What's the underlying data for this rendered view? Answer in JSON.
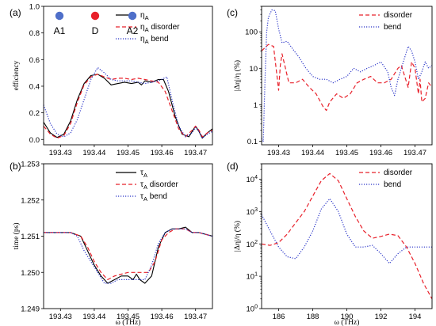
{
  "chart_data": [
    {
      "panel_label": "(a)",
      "type": "line",
      "xlabel": "",
      "ylabel": "efficiency",
      "xlim": [
        193.425,
        193.475
      ],
      "ylim": [
        -0.04,
        1.0
      ],
      "x_ticks": [
        193.43,
        193.44,
        193.45,
        193.46,
        193.47
      ],
      "x_tick_labels": [
        "193.43",
        "193.44",
        "193.45",
        "193.46",
        "193.47"
      ],
      "y_ticks": [
        0.0,
        0.2,
        0.4,
        0.6,
        0.8,
        1.0
      ],
      "y_tick_labels": [
        "0.0",
        "0.2",
        "0.4",
        "0.6",
        "0.8",
        "1.0"
      ],
      "legend_position": "top-right",
      "markers": [
        {
          "label": "A1",
          "color": "#4f6fc9"
        },
        {
          "label": "D",
          "color": "#e8202a"
        },
        {
          "label": "A2",
          "color": "#4f6fc9"
        }
      ],
      "series": [
        {
          "name": "η",
          "sub": "A",
          "name_suffix": "",
          "color": "#000000",
          "style": "solid",
          "x": [
            193.425,
            193.427,
            193.429,
            193.431,
            193.433,
            193.435,
            193.437,
            193.439,
            193.441,
            193.443,
            193.445,
            193.447,
            193.449,
            193.451,
            193.453,
            193.454,
            193.455,
            193.457,
            193.459,
            193.4605,
            193.462,
            193.464,
            193.466,
            193.468,
            193.469,
            193.47,
            193.471,
            193.472,
            193.4735,
            193.475
          ],
          "y": [
            0.13,
            0.05,
            0.015,
            0.04,
            0.14,
            0.3,
            0.42,
            0.48,
            0.49,
            0.46,
            0.41,
            0.42,
            0.43,
            0.42,
            0.43,
            0.41,
            0.44,
            0.43,
            0.45,
            0.45,
            0.36,
            0.17,
            0.04,
            0.02,
            0.06,
            0.1,
            0.06,
            0.01,
            0.05,
            0.08
          ]
        },
        {
          "name": "η",
          "sub": "A",
          "name_suffix": " disorder",
          "color": "#e8202a",
          "style": "dashed",
          "x": [
            193.425,
            193.427,
            193.429,
            193.431,
            193.433,
            193.435,
            193.437,
            193.439,
            193.441,
            193.443,
            193.445,
            193.447,
            193.449,
            193.451,
            193.453,
            193.455,
            193.457,
            193.459,
            193.461,
            193.463,
            193.465,
            193.467,
            193.469,
            193.47,
            193.471,
            193.472,
            193.4735,
            193.475
          ],
          "y": [
            0.1,
            0.04,
            0.01,
            0.03,
            0.12,
            0.28,
            0.41,
            0.47,
            0.49,
            0.47,
            0.45,
            0.46,
            0.46,
            0.45,
            0.46,
            0.45,
            0.44,
            0.43,
            0.36,
            0.22,
            0.08,
            0.02,
            0.07,
            0.1,
            0.07,
            0.02,
            0.05,
            0.07
          ]
        },
        {
          "name": "η",
          "sub": "A",
          "name_suffix": " bend",
          "color": "#2a35c8",
          "style": "dotted",
          "x": [
            193.425,
            193.427,
            193.429,
            193.431,
            193.433,
            193.435,
            193.437,
            193.439,
            193.441,
            193.443,
            193.445,
            193.447,
            193.449,
            193.451,
            193.453,
            193.455,
            193.457,
            193.459,
            193.4615,
            193.463,
            193.465,
            193.467,
            193.469,
            193.47,
            193.471,
            193.472,
            193.4735,
            193.475
          ],
          "y": [
            0.26,
            0.12,
            0.04,
            0.02,
            0.05,
            0.15,
            0.3,
            0.45,
            0.54,
            0.5,
            0.45,
            0.44,
            0.44,
            0.44,
            0.43,
            0.42,
            0.43,
            0.44,
            0.47,
            0.3,
            0.1,
            0.02,
            0.05,
            0.09,
            0.06,
            0.01,
            0.04,
            0.06
          ]
        }
      ]
    },
    {
      "panel_label": "(b)",
      "type": "line",
      "xlabel": "ω (THz)",
      "ylabel": "time (ps)",
      "xlim": [
        193.425,
        193.475
      ],
      "ylim": [
        1.249,
        1.253
      ],
      "x_ticks": [
        193.43,
        193.44,
        193.45,
        193.46,
        193.47
      ],
      "x_tick_labels": [
        "193.43",
        "193.44",
        "193.45",
        "193.46",
        "193.47"
      ],
      "y_ticks": [
        1.249,
        1.25,
        1.251,
        1.252,
        1.253
      ],
      "y_tick_labels": [
        "1.249",
        "1.250",
        "1.251",
        "1.252",
        "1.253"
      ],
      "legend_position": "top-right",
      "series": [
        {
          "name": "τ",
          "sub": "A",
          "name_suffix": "",
          "color": "#000000",
          "style": "solid",
          "x": [
            193.425,
            193.429,
            193.433,
            193.436,
            193.438,
            193.44,
            193.442,
            193.444,
            193.446,
            193.448,
            193.45,
            193.4515,
            193.4525,
            193.4535,
            193.455,
            193.457,
            193.459,
            193.461,
            193.463,
            193.465,
            193.467,
            193.469,
            193.471,
            193.473,
            193.475
          ],
          "y": [
            1.2511,
            1.2511,
            1.2511,
            1.251,
            1.2506,
            1.2502,
            1.2499,
            1.2497,
            1.2498,
            1.2499,
            1.2499,
            1.2498,
            1.24995,
            1.2498,
            1.2497,
            1.2499,
            1.2507,
            1.2511,
            1.2512,
            1.2512,
            1.25125,
            1.2511,
            1.2511,
            1.25105,
            1.251
          ]
        },
        {
          "name": "τ",
          "sub": "A",
          "name_suffix": " disorder",
          "color": "#e8202a",
          "style": "dashed",
          "x": [
            193.425,
            193.429,
            193.433,
            193.436,
            193.438,
            193.44,
            193.442,
            193.444,
            193.446,
            193.448,
            193.45,
            193.452,
            193.454,
            193.456,
            193.458,
            193.46,
            193.462,
            193.464,
            193.467,
            193.469,
            193.471,
            193.473,
            193.475
          ],
          "y": [
            1.2511,
            1.2511,
            1.2511,
            1.251,
            1.2507,
            1.2503,
            1.25,
            1.2498,
            1.2499,
            1.24995,
            1.25,
            1.25,
            1.25,
            1.25,
            1.2503,
            1.2509,
            1.2511,
            1.2512,
            1.2512,
            1.2511,
            1.2511,
            1.25105,
            1.251
          ]
        },
        {
          "name": "τ",
          "sub": "A",
          "name_suffix": " bend",
          "color": "#2a35c8",
          "style": "dotted",
          "x": [
            193.425,
            193.429,
            193.433,
            193.435,
            193.437,
            193.439,
            193.441,
            193.443,
            193.445,
            193.447,
            193.449,
            193.451,
            193.453,
            193.455,
            193.457,
            193.459,
            193.461,
            193.463,
            193.465,
            193.467,
            193.469,
            193.471,
            193.473,
            193.475
          ],
          "y": [
            1.2511,
            1.2511,
            1.2511,
            1.251,
            1.2506,
            1.2503,
            1.25,
            1.2497,
            1.2497,
            1.2498,
            1.2498,
            1.2498,
            1.2498,
            1.2498,
            1.2502,
            1.2508,
            1.2511,
            1.2512,
            1.2512,
            1.2512,
            1.2511,
            1.2511,
            1.25105,
            1.251
          ]
        }
      ]
    },
    {
      "panel_label": "(c)",
      "type": "line",
      "xlabel": "",
      "ylabel": "|Δη|/η (%)",
      "yscale": "log",
      "xlim": [
        193.425,
        193.475
      ],
      "ylim": [
        0.08,
        500
      ],
      "x_ticks": [
        193.43,
        193.44,
        193.45,
        193.46,
        193.47
      ],
      "x_tick_labels": [
        "193.43",
        "193.44",
        "193.45",
        "193.46",
        "193.47"
      ],
      "y_ticks": [
        0.1,
        1,
        10,
        100
      ],
      "y_tick_labels": [
        "0.1",
        "1",
        "10",
        "100"
      ],
      "legend_position": "top-right",
      "series": [
        {
          "name": "disorder",
          "color": "#e8202a",
          "style": "dashed",
          "x": [
            193.425,
            193.427,
            193.4285,
            193.43,
            193.4305,
            193.431,
            193.432,
            193.433,
            193.435,
            193.437,
            193.439,
            193.441,
            193.443,
            193.444,
            193.445,
            193.447,
            193.449,
            193.451,
            193.453,
            193.455,
            193.457,
            193.459,
            193.461,
            193.463,
            193.465,
            193.466,
            193.467,
            193.468,
            193.469,
            193.47,
            193.471,
            193.4715,
            193.472,
            193.473,
            193.474,
            193.475
          ],
          "y": [
            30,
            45,
            40,
            2.5,
            12,
            25,
            10,
            4,
            4,
            5,
            3,
            2,
            0.9,
            0.7,
            1.2,
            2,
            1.5,
            2,
            4,
            5,
            6,
            4,
            4,
            5,
            10,
            12,
            6,
            3,
            15,
            10,
            2,
            5,
            1.2,
            1.5,
            4,
            3
          ]
        },
        {
          "name": "bend",
          "color": "#2a35c8",
          "style": "dotted",
          "x": [
            193.425,
            193.4255,
            193.426,
            193.4265,
            193.427,
            193.428,
            193.429,
            193.43,
            193.431,
            193.4325,
            193.434,
            193.436,
            193.438,
            193.44,
            193.442,
            193.444,
            193.446,
            193.448,
            193.45,
            193.452,
            193.454,
            193.456,
            193.458,
            193.46,
            193.462,
            193.463,
            193.464,
            193.465,
            193.466,
            193.467,
            193.468,
            193.469,
            193.47,
            193.471,
            193.472,
            193.473,
            193.474,
            193.475
          ],
          "y": [
            0.12,
            0.1,
            5,
            100,
            250,
            400,
            380,
            120,
            50,
            55,
            35,
            20,
            10,
            6,
            5,
            5,
            4,
            5,
            6,
            10,
            8,
            10,
            12,
            15,
            8,
            3,
            1.8,
            5,
            10,
            20,
            40,
            30,
            15,
            5,
            8,
            15,
            10,
            12
          ]
        }
      ]
    },
    {
      "panel_label": "(d)",
      "type": "line",
      "xlabel": "ω (THz)",
      "ylabel": "|Δη|/η (%)",
      "yscale": "log",
      "xlim": [
        185,
        195
      ],
      "ylim": [
        1,
        30000
      ],
      "x_ticks": [
        186,
        188,
        190,
        192,
        194
      ],
      "x_tick_labels": [
        "186",
        "188",
        "190",
        "192",
        "194"
      ],
      "y_ticks": [
        1,
        10,
        100,
        1000,
        10000
      ],
      "y_tick_labels": [
        "10^0",
        "10^1",
        "10^2",
        "10^3",
        "10^4"
      ],
      "legend_position": "top-right",
      "series": [
        {
          "name": "disorder",
          "color": "#e8202a",
          "style": "dashed",
          "x": [
            185,
            185.5,
            186,
            186.5,
            187,
            187.5,
            188,
            188.5,
            189,
            189.5,
            190,
            190.5,
            191,
            191.5,
            192,
            192.5,
            193,
            193.5,
            194,
            194.5,
            195
          ],
          "y": [
            100,
            90,
            110,
            200,
            450,
            1000,
            3000,
            9000,
            15000,
            9000,
            2500,
            700,
            250,
            150,
            170,
            200,
            180,
            80,
            25,
            6,
            2
          ]
        },
        {
          "name": "bend",
          "color": "#2a35c8",
          "style": "dotted",
          "x": [
            185,
            185.5,
            186,
            186.5,
            187,
            187.5,
            188,
            188.5,
            189,
            189.5,
            190,
            190.5,
            191,
            191.5,
            192,
            192.5,
            193,
            193.5,
            194,
            194.5,
            195
          ],
          "y": [
            800,
            250,
            80,
            40,
            35,
            80,
            250,
            1200,
            2500,
            1000,
            200,
            80,
            80,
            90,
            50,
            25,
            50,
            80,
            80,
            80,
            80
          ]
        }
      ]
    }
  ]
}
